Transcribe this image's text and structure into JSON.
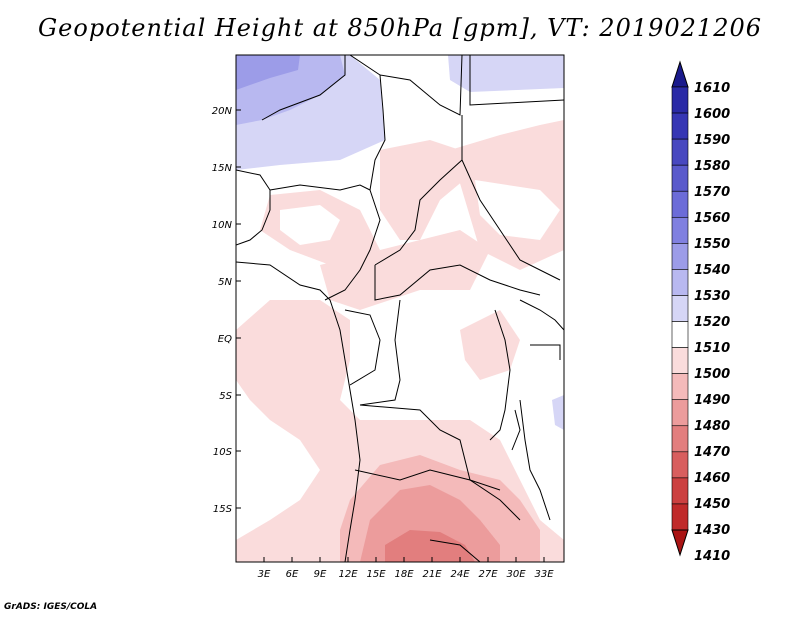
{
  "title": "Geopotential Height at 850hPa [gpm], VT: 2019021206",
  "footer": "GrADS: IGES/COLA",
  "map": {
    "lat_labels": [
      "20N",
      "15N",
      "10N",
      "5N",
      "EQ",
      "5S",
      "10S",
      "15S"
    ],
    "lon_labels": [
      "3E",
      "6E",
      "9E",
      "12E",
      "15E",
      "18E",
      "21E",
      "24E",
      "27E",
      "30E",
      "33E"
    ]
  },
  "colorbar": {
    "levels": [
      "1610",
      "1600",
      "1590",
      "1580",
      "1570",
      "1560",
      "1550",
      "1540",
      "1530",
      "1520",
      "1510",
      "1500",
      "1490",
      "1480",
      "1470",
      "1460",
      "1450",
      "1430",
      "1410"
    ],
    "colors": [
      "#1a1a8c",
      "#2a2aa6",
      "#3636b4",
      "#4848c0",
      "#5a5acc",
      "#6c6cd8",
      "#8080e0",
      "#9c9ce8",
      "#b8b8f0",
      "#d6d6f6",
      "#ffffff",
      "#fadcdc",
      "#f4baba",
      "#ec9c9c",
      "#e27e7e",
      "#d85e5e",
      "#cc4040",
      "#c02a2a",
      "#aa1414"
    ]
  }
}
